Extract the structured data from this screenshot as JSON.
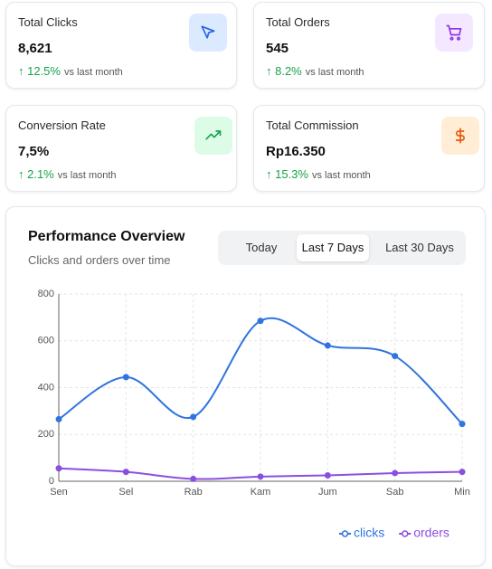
{
  "cards": [
    {
      "title": "Total Clicks",
      "value": "8,621",
      "change": "↑ 12.5%",
      "note": "vs last month"
    },
    {
      "title": "Total Orders",
      "value": "545",
      "change": "↑ 8.2%",
      "note": "vs last month"
    },
    {
      "title": "Conversion Rate",
      "value": "7,5%",
      "change": "↑ 2.1%",
      "note": "vs last month"
    },
    {
      "title": "Total Commission",
      "value": "Rp16.350",
      "change": "↑ 15.3%",
      "note": "vs last month"
    }
  ],
  "panel": {
    "title": "Performance Overview",
    "subtitle": "Clicks and orders over time",
    "tabs": [
      "Today",
      "Last 7 Days",
      "Last 30 Days"
    ],
    "active_tab": 1
  },
  "chart_data": {
    "type": "line",
    "categories": [
      "Sen",
      "Sel",
      "Rab",
      "Kam",
      "Jum",
      "Sab",
      "Min"
    ],
    "series": [
      {
        "name": "clicks",
        "color": "#2f74e0",
        "values": [
          265,
          445,
          275,
          685,
          580,
          535,
          245
        ]
      },
      {
        "name": "orders",
        "color": "#8b4fe0",
        "values": [
          55,
          40,
          10,
          20,
          25,
          35,
          40
        ]
      }
    ],
    "ylim": [
      0,
      800
    ],
    "yticks": [
      0,
      200,
      400,
      600,
      800
    ],
    "grid": true,
    "legend": "bottom-right"
  }
}
